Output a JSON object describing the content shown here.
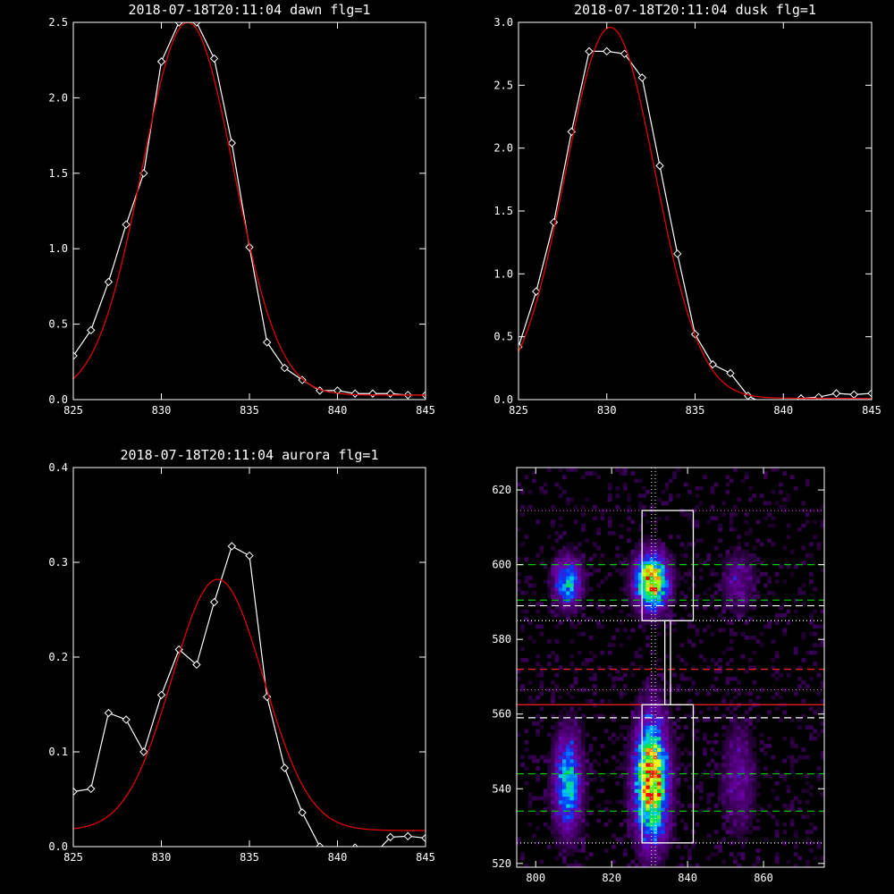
{
  "chart_data": [
    {
      "type": "line",
      "title": "2018-07-18T20:11:04 dawn flg=1",
      "xlim": [
        825,
        845
      ],
      "ylim": [
        0,
        2.5
      ],
      "xticks": [
        825,
        830,
        835,
        840,
        845
      ],
      "yticks": [
        "0.0",
        "0.5",
        "1.0",
        "1.5",
        "2.0",
        "2.5"
      ],
      "series": [
        {
          "style": "white-line-diamonds",
          "x": [
            825,
            826,
            827,
            828,
            829,
            830,
            831,
            832,
            833,
            834,
            835,
            836,
            837,
            838,
            839,
            840,
            841,
            842,
            843,
            844,
            845
          ],
          "y": [
            0.29,
            0.46,
            0.78,
            1.16,
            1.5,
            2.24,
            2.5,
            2.5,
            2.26,
            1.7,
            1.01,
            0.38,
            0.21,
            0.13,
            0.06,
            0.06,
            0.04,
            0.04,
            0.04,
            0.03,
            0.03
          ]
        },
        {
          "style": "red-fit",
          "fit": {
            "amp": 2.47,
            "center": 831.5,
            "sigma": 2.6,
            "offset": 0.03
          }
        }
      ]
    },
    {
      "type": "line",
      "title": "2018-07-18T20:11:04 dusk flg=1",
      "xlim": [
        825,
        845
      ],
      "ylim": [
        0,
        3.0
      ],
      "xticks": [
        825,
        830,
        835,
        840,
        845
      ],
      "yticks": [
        "0.0",
        "0.5",
        "1.0",
        "1.5",
        "2.0",
        "2.5",
        "3.0"
      ],
      "series": [
        {
          "style": "white-line-diamonds",
          "x": [
            825,
            826,
            827,
            828,
            829,
            830,
            831,
            832,
            833,
            834,
            835,
            836,
            837,
            838,
            839,
            840,
            841,
            842,
            843,
            844,
            845
          ],
          "y": [
            0.42,
            0.86,
            1.41,
            2.13,
            2.77,
            2.77,
            2.75,
            2.56,
            1.86,
            1.16,
            0.52,
            0.28,
            0.21,
            0.03,
            -0.04,
            -0.05,
            0.01,
            0.02,
            0.05,
            0.04,
            0.05
          ]
        },
        {
          "style": "red-fit",
          "fit": {
            "amp": 2.95,
            "center": 830.2,
            "sigma": 2.55,
            "offset": 0.01
          }
        }
      ]
    },
    {
      "type": "line",
      "title": "2018-07-18T20:11:04 aurora flg=1",
      "xlim": [
        825,
        845
      ],
      "ylim": [
        0,
        0.4
      ],
      "xticks": [
        825,
        830,
        835,
        840,
        845
      ],
      "yticks": [
        "0.0",
        "0.1",
        "0.2",
        "0.3",
        "0.4"
      ],
      "series": [
        {
          "style": "white-line-diamonds",
          "x": [
            825,
            826,
            827,
            828,
            829,
            830,
            831,
            832,
            833,
            834,
            835,
            836,
            837,
            838,
            839,
            840,
            841,
            842,
            843,
            844,
            845
          ],
          "y": [
            0.058,
            0.061,
            0.141,
            0.134,
            0.1,
            0.16,
            0.208,
            0.192,
            0.258,
            0.317,
            0.307,
            0.158,
            0.083,
            0.036,
            0.0,
            -0.01,
            -0.001,
            -0.01,
            0.01,
            0.011,
            0.009
          ]
        },
        {
          "style": "red-fit",
          "fit": {
            "amp": 0.265,
            "center": 833.2,
            "sigma": 2.6,
            "offset": 0.017
          }
        }
      ]
    },
    {
      "type": "heatmap",
      "title": "",
      "xlim": [
        795,
        876
      ],
      "ylim": [
        519,
        626
      ],
      "xticks": [
        "800",
        "820",
        "840",
        "860"
      ],
      "yticks": [
        "520",
        "540",
        "560",
        "580",
        "600",
        "620"
      ],
      "blobs": [
        {
          "x": 808,
          "y": 595,
          "sx": 2.5,
          "sy": 4.5,
          "amp": 0.55
        },
        {
          "x": 830,
          "y": 595,
          "sx": 3.0,
          "sy": 5.0,
          "amp": 0.95
        },
        {
          "x": 853,
          "y": 595,
          "sx": 3.0,
          "sy": 5.5,
          "amp": 0.22
        },
        {
          "x": 808,
          "y": 541,
          "sx": 2.5,
          "sy": 9.0,
          "amp": 0.6
        },
        {
          "x": 830,
          "y": 542,
          "sx": 3.0,
          "sy": 11.0,
          "amp": 1.0
        },
        {
          "x": 853,
          "y": 542,
          "sx": 3.0,
          "sy": 10.0,
          "amp": 0.22
        }
      ],
      "boxes": [
        {
          "x0": 828,
          "x1": 841.5,
          "y0": 585,
          "y1": 614.5,
          "color": "#ffffff"
        },
        {
          "x0": 834,
          "x1": 835.5,
          "y0": 562.5,
          "y1": 585,
          "color": "#ffffff"
        },
        {
          "x0": 828,
          "x1": 841.5,
          "y0": 525.5,
          "y1": 562.5,
          "color": "#ffffff"
        }
      ],
      "hlines": [
        {
          "y": 614.5,
          "color": "#ff40ff",
          "dash": "1,3"
        },
        {
          "y": 600,
          "color": "#00cc00",
          "dash": "8,5"
        },
        {
          "y": 590.5,
          "color": "#00cc00",
          "dash": "8,5"
        },
        {
          "y": 589,
          "color": "#ffffff",
          "dash": "8,5"
        },
        {
          "y": 585,
          "color": "#ffffff",
          "dash": "1,3"
        },
        {
          "y": 572,
          "color": "#ff2020",
          "dash": "8,5"
        },
        {
          "y": 566.5,
          "color": "#ff40ff",
          "dash": "1,3"
        },
        {
          "y": 562.5,
          "color": "#ff2020",
          "dash": ""
        },
        {
          "y": 559,
          "color": "#ffffff",
          "dash": "8,5"
        },
        {
          "y": 544,
          "color": "#00cc00",
          "dash": "8,5"
        },
        {
          "y": 534,
          "color": "#00cc00",
          "dash": "8,5"
        },
        {
          "y": 525.5,
          "color": "#ffffff",
          "dash": "1,3"
        }
      ],
      "vlines": [
        {
          "x": 830.5,
          "color": "#ffffff",
          "dash": "1,3"
        },
        {
          "x": 831.5,
          "color": "#ffffff",
          "dash": "1,3"
        }
      ]
    }
  ]
}
